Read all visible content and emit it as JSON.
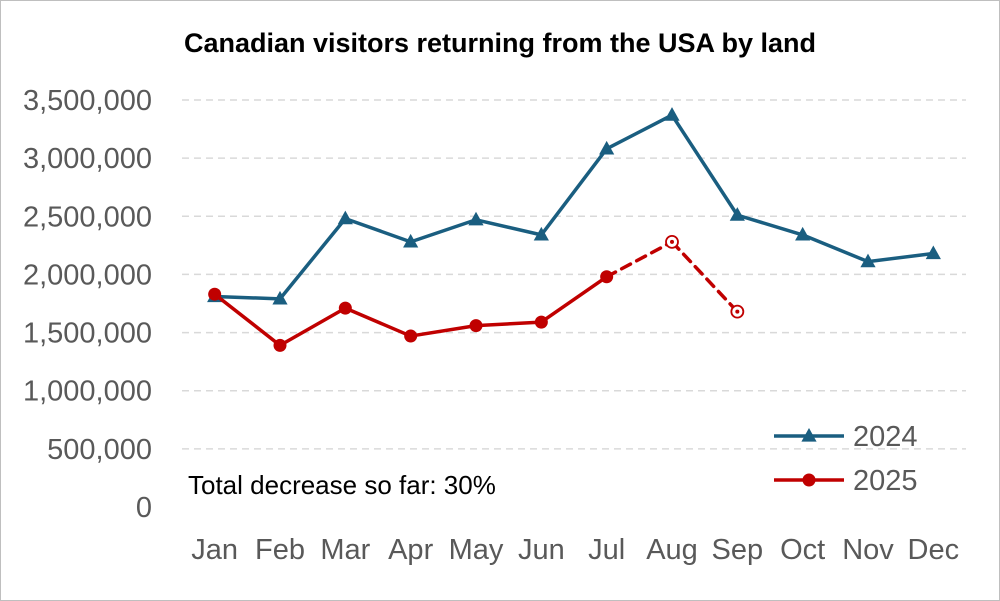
{
  "chart_data": {
    "type": "line",
    "title": "Canadian visitors returning from the USA by land",
    "categories": [
      "Jan",
      "Feb",
      "Mar",
      "Apr",
      "May",
      "Jun",
      "Jul",
      "Aug",
      "Sep",
      "Oct",
      "Nov",
      "Dec"
    ],
    "ylim": [
      0,
      3500000
    ],
    "yticks": [
      0,
      500000,
      1000000,
      1500000,
      2000000,
      2500000,
      3000000,
      3500000
    ],
    "ytick_labels": [
      "0",
      "500,000",
      "1,000,000",
      "1,500,000",
      "2,000,000",
      "2,500,000",
      "3,000,000",
      "3,500,000"
    ],
    "grid": true,
    "legend_position": "bottom-right",
    "series": [
      {
        "name": "2024",
        "color": "#1a5e80",
        "marker": "triangle",
        "values": [
          1810000,
          1790000,
          2480000,
          2280000,
          2470000,
          2340000,
          3080000,
          3370000,
          2510000,
          2340000,
          2110000,
          2180000
        ]
      },
      {
        "name": "2025",
        "color": "#c00000",
        "marker": "circle",
        "values": [
          1830000,
          1390000,
          1710000,
          1470000,
          1560000,
          1590000,
          1980000,
          2280000,
          1680000,
          null,
          null,
          null
        ],
        "provisional_from_index": 6,
        "provisional_marker": "hollow-circle"
      }
    ],
    "annotation": "Total decrease so far: 30%"
  }
}
